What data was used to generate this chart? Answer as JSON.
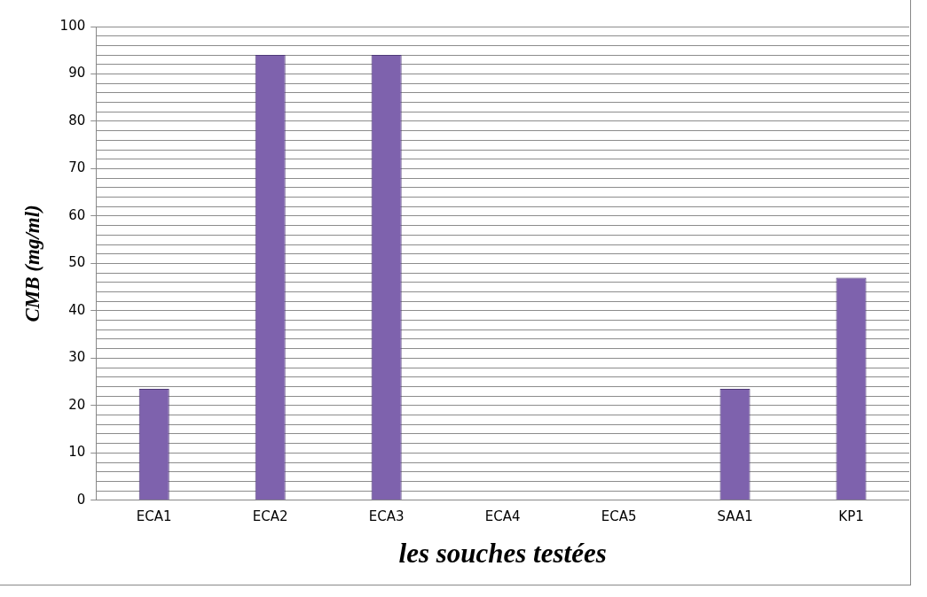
{
  "chart_data": {
    "type": "bar",
    "xlabel": "les souches testées",
    "ylabel": "CMB (mg/ml)",
    "categories": [
      "ECA1",
      "ECA2",
      "ECA3",
      "ECA4",
      "ECA5",
      "SAA1",
      "KP1"
    ],
    "values": [
      23.5,
      94,
      94,
      0,
      0,
      23.5,
      47
    ],
    "color": "#7e62ad",
    "ylim": [
      0,
      100
    ],
    "yticks": [
      0,
      {
        "value": 2,
        "label": null
      },
      {
        "value": 4,
        "label": null
      },
      {
        "value": 6,
        "label": null
      },
      {
        "value": 8,
        "label": null
      },
      10,
      {
        "value": 12,
        "label": null
      },
      {
        "value": 14,
        "label": null
      },
      {
        "value": 16,
        "label": null
      },
      {
        "value": 18,
        "label": null
      },
      20,
      {
        "value": 22,
        "label": null
      },
      {
        "value": 24,
        "label": null
      },
      {
        "value": 26,
        "label": null
      },
      {
        "value": 28,
        "label": null
      },
      30,
      {
        "value": 32,
        "label": null
      },
      {
        "value": 34,
        "label": null
      },
      {
        "value": 36,
        "label": null
      },
      {
        "value": 38,
        "label": null
      },
      40,
      {
        "value": 42,
        "label": null
      },
      {
        "value": 44,
        "label": null
      },
      {
        "value": 46,
        "label": null
      },
      {
        "value": 48,
        "label": null
      },
      50,
      {
        "value": 52,
        "label": null
      },
      {
        "value": 54,
        "label": null
      },
      {
        "value": 56,
        "label": null
      },
      {
        "value": 58,
        "label": null
      },
      60,
      {
        "value": 62,
        "label": null
      },
      {
        "value": 64,
        "label": null
      },
      {
        "value": 66,
        "label": null
      },
      {
        "value": 68,
        "label": null
      },
      70,
      {
        "value": 72,
        "label": null
      },
      {
        "value": 74,
        "label": null
      },
      {
        "value": 76,
        "label": null
      },
      {
        "value": 78,
        "label": null
      },
      80,
      {
        "value": 82,
        "label": null
      },
      {
        "value": 84,
        "label": null
      },
      {
        "value": 86,
        "label": null
      },
      {
        "value": 88,
        "label": null
      },
      90,
      {
        "value": 92,
        "label": null
      },
      {
        "value": 94,
        "label": null
      },
      {
        "value": 96,
        "label": null
      },
      {
        "value": 98,
        "label": null
      },
      100
    ],
    "grid": "y",
    "legend": false
  }
}
